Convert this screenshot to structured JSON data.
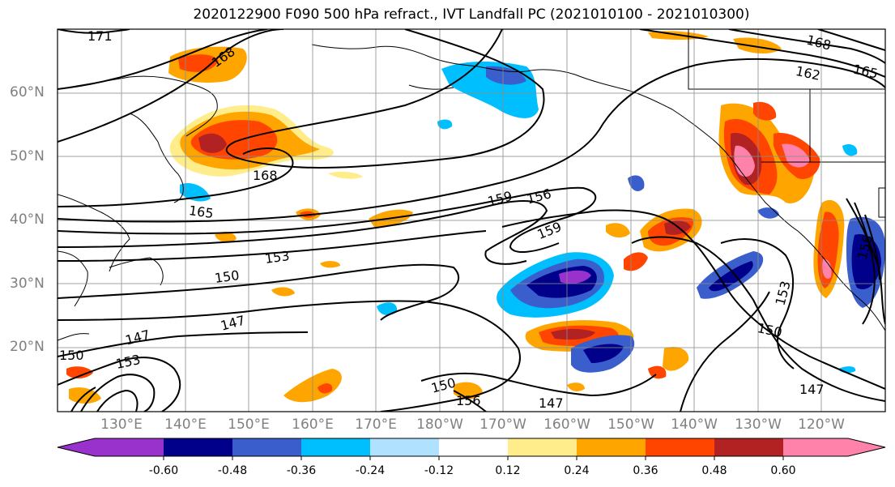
{
  "title": "2020122900 F090 500 hPa refract., IVT Landfall PC (2021010100 - 2021010300)",
  "lat_labels": [
    "60°N",
    "50°N",
    "40°N",
    "30°N",
    "20°N"
  ],
  "lon_labels": [
    "130°E",
    "140°E",
    "150°E",
    "160°E",
    "170°E",
    "180°W",
    "170°W",
    "160°W",
    "150°W",
    "140°W",
    "130°W",
    "120°W"
  ],
  "colorbar": {
    "colors": [
      "#9932cc",
      "#00008b",
      "#3a5fcd",
      "#00bfff",
      "#b0e2ff",
      "#ffffff",
      "#ffec8b",
      "#ffa500",
      "#ff4500",
      "#b22222",
      "#ff82ab"
    ],
    "tick_labels": [
      "-0.60",
      "-0.48",
      "-0.36",
      "-0.24",
      "-0.12",
      "0.12",
      "0.24",
      "0.36",
      "0.48",
      "0.60"
    ]
  },
  "contour_labels": [
    "171",
    "168",
    "168",
    "165",
    "162",
    "165",
    "168",
    "159",
    "156",
    "159",
    "153",
    "150",
    "147",
    "147",
    "150",
    "153",
    "150",
    "153",
    "156",
    "150",
    "147",
    "147",
    "156"
  ]
}
